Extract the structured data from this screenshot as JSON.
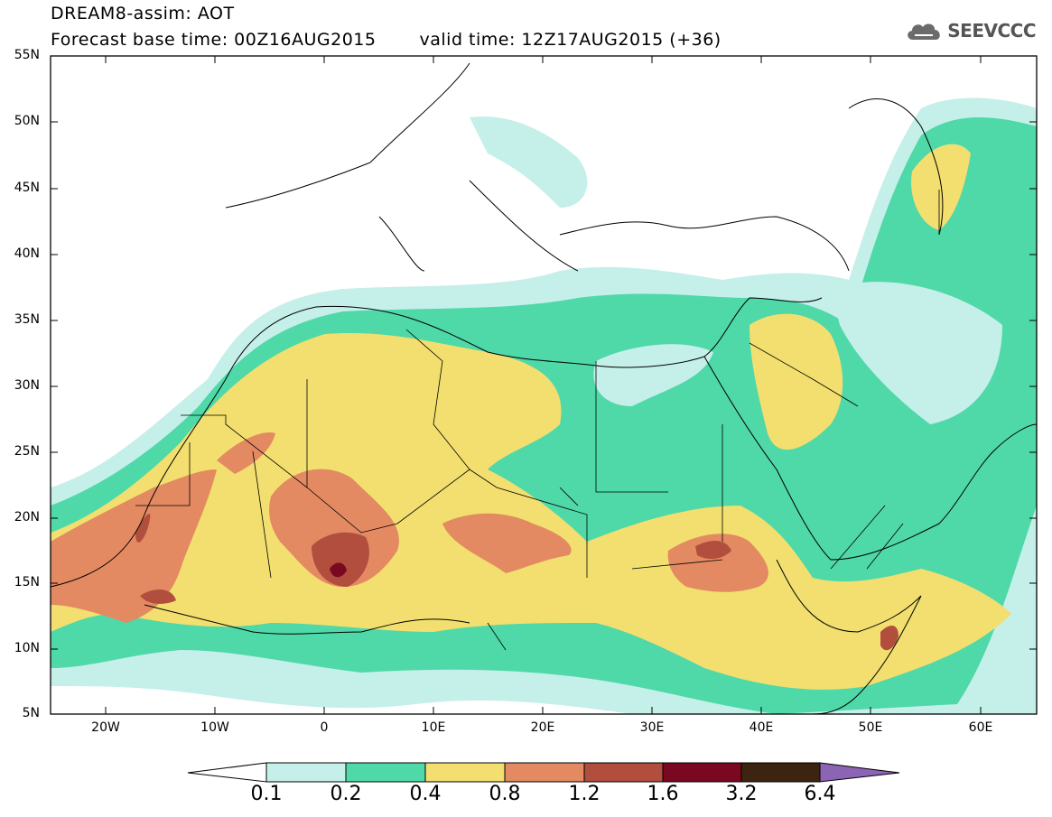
{
  "header": {
    "title": "DREAM8-assim: AOT",
    "base_time": "Forecast base time: 00Z16AUG2015",
    "valid_time": "valid time: 12Z17AUG2015 (+36)",
    "logo": "SEEVCCC"
  },
  "axes": {
    "lat_labels": [
      "55N",
      "50N",
      "45N",
      "40N",
      "35N",
      "30N",
      "25N",
      "20N",
      "15N",
      "10N",
      "5N"
    ],
    "lon_labels": [
      "20W",
      "10W",
      "0",
      "10E",
      "20E",
      "30E",
      "40E",
      "50E",
      "60E"
    ]
  },
  "colorbar": {
    "labels": [
      "0.1",
      "0.2",
      "0.4",
      "0.8",
      "1.2",
      "1.6",
      "3.2",
      "6.4"
    ],
    "colors": [
      "#c5efe9",
      "#4fd8a8",
      "#f2df6f",
      "#e38a62",
      "#b24e3e",
      "#7a0820",
      "#3c2410",
      "#8c64b4"
    ]
  },
  "icons": {
    "logo": "cloud-icon"
  }
}
